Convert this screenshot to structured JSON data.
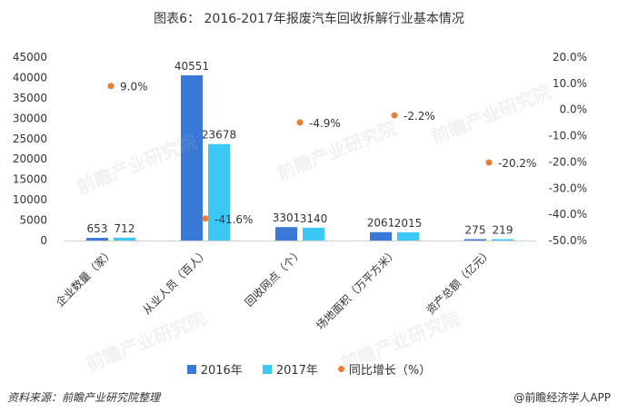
{
  "title": "图表6： 2016-2017年报废汽车回收拆解行业基本情况",
  "source_label": "资料来源：前瞻产业研究院整理",
  "brand_label": "@前瞻经济学人APP",
  "watermark_text": "前瞻产业研究院",
  "colors": {
    "s2016": "#3a78d8",
    "s2017": "#3cc8f4",
    "growth": "#ed7d31"
  },
  "chart_data": {
    "type": "bar",
    "categories": [
      "企业数量（家）",
      "从业人员（百人）",
      "回收网点（个）",
      "场地面积（万平方米）",
      "资产总额（亿元）"
    ],
    "series": [
      {
        "name": "2016年",
        "values": [
          653,
          40551,
          3301,
          2061,
          275
        ],
        "labels": [
          "653",
          "40551",
          "3301",
          "2061",
          "275"
        ]
      },
      {
        "name": "2017年",
        "values": [
          712,
          23678,
          3140,
          2015,
          219
        ],
        "labels": [
          "712",
          "23678",
          "3140",
          "2015",
          "219"
        ]
      }
    ],
    "growth": {
      "name": "同比增长（%）",
      "values": [
        9.0,
        -41.6,
        -4.9,
        -2.2,
        -20.2
      ],
      "labels": [
        "9.0%",
        "-41.6%",
        "-4.9%",
        "-2.2%",
        "-20.2%"
      ]
    },
    "ylim": [
      0,
      45000
    ],
    "yticks": [
      "0",
      "5000",
      "10000",
      "15000",
      "20000",
      "25000",
      "30000",
      "35000",
      "40000",
      "45000"
    ],
    "y2lim": [
      -50,
      20
    ],
    "y2ticks": [
      "20.0%",
      "10.0%",
      "0.0%",
      "-10.0%",
      "-20.0%",
      "-30.0%",
      "-40.0%",
      "-50.0%"
    ],
    "legend_position": "bottom"
  }
}
